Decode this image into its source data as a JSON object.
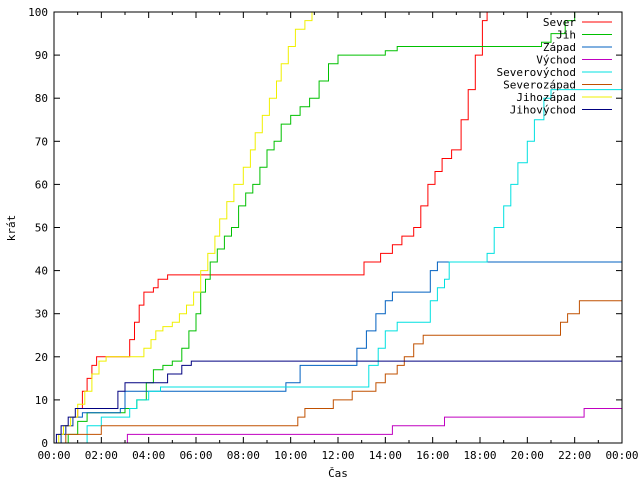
{
  "chart_data": {
    "type": "line",
    "xlabel": "Čas",
    "ylabel": "krát",
    "xlim": [
      0,
      24
    ],
    "ylim": [
      0,
      100
    ],
    "x_tick_labels": [
      "00:00",
      "02:00",
      "04:00",
      "06:00",
      "08:00",
      "10:00",
      "12:00",
      "14:00",
      "16:00",
      "18:00",
      "20:00",
      "22:00",
      "00:00"
    ],
    "y_ticks": [
      0,
      10,
      20,
      30,
      40,
      50,
      60,
      70,
      80,
      90,
      100
    ],
    "grid": false,
    "legend_position": "top-right",
    "series": [
      {
        "name": "Sever",
        "color": "#ff0000",
        "points": [
          [
            0,
            0
          ],
          [
            0.3,
            2
          ],
          [
            0.5,
            4
          ],
          [
            0.8,
            6
          ],
          [
            1.0,
            8
          ],
          [
            1.2,
            12
          ],
          [
            1.4,
            15
          ],
          [
            1.6,
            18
          ],
          [
            1.8,
            20
          ],
          [
            3.0,
            20
          ],
          [
            3.2,
            24
          ],
          [
            3.4,
            28
          ],
          [
            3.6,
            32
          ],
          [
            3.8,
            35
          ],
          [
            4.2,
            36
          ],
          [
            4.4,
            38
          ],
          [
            4.8,
            39
          ],
          [
            13.0,
            39
          ],
          [
            13.1,
            42
          ],
          [
            13.6,
            42
          ],
          [
            13.8,
            44
          ],
          [
            14.3,
            46
          ],
          [
            14.7,
            48
          ],
          [
            15.2,
            50
          ],
          [
            15.5,
            55
          ],
          [
            15.8,
            60
          ],
          [
            16.1,
            63
          ],
          [
            16.4,
            66
          ],
          [
            16.8,
            68
          ],
          [
            17.2,
            75
          ],
          [
            17.5,
            82
          ],
          [
            17.8,
            90
          ],
          [
            18.1,
            98
          ],
          [
            18.3,
            100
          ]
        ]
      },
      {
        "name": "Jih",
        "color": "#00c000",
        "points": [
          [
            0,
            0
          ],
          [
            0.6,
            2
          ],
          [
            1.0,
            5
          ],
          [
            1.4,
            7
          ],
          [
            2.0,
            7
          ],
          [
            3.0,
            8
          ],
          [
            3.5,
            10
          ],
          [
            3.9,
            14
          ],
          [
            4.2,
            17
          ],
          [
            4.6,
            18
          ],
          [
            5.0,
            19
          ],
          [
            5.4,
            22
          ],
          [
            5.7,
            26
          ],
          [
            6.0,
            30
          ],
          [
            6.2,
            35
          ],
          [
            6.4,
            38
          ],
          [
            6.6,
            42
          ],
          [
            6.9,
            45
          ],
          [
            7.2,
            48
          ],
          [
            7.5,
            50
          ],
          [
            7.8,
            55
          ],
          [
            8.1,
            58
          ],
          [
            8.4,
            60
          ],
          [
            8.7,
            64
          ],
          [
            9.0,
            68
          ],
          [
            9.3,
            70
          ],
          [
            9.6,
            74
          ],
          [
            10.0,
            76
          ],
          [
            10.4,
            78
          ],
          [
            10.8,
            80
          ],
          [
            11.2,
            84
          ],
          [
            11.6,
            88
          ],
          [
            12.0,
            90
          ],
          [
            13.5,
            90
          ],
          [
            14.0,
            91
          ],
          [
            14.5,
            92
          ],
          [
            20.0,
            92
          ],
          [
            20.6,
            93
          ],
          [
            21.0,
            95
          ],
          [
            21.6,
            98
          ],
          [
            22.0,
            100
          ]
        ]
      },
      {
        "name": "Západ",
        "color": "#0060c0",
        "points": [
          [
            0,
            0
          ],
          [
            0.3,
            2
          ],
          [
            0.5,
            4
          ],
          [
            0.8,
            6
          ],
          [
            1.2,
            7
          ],
          [
            2.0,
            7
          ],
          [
            2.8,
            8
          ],
          [
            3.0,
            12
          ],
          [
            9.6,
            12
          ],
          [
            9.8,
            14
          ],
          [
            10.4,
            18
          ],
          [
            12.6,
            18
          ],
          [
            12.8,
            22
          ],
          [
            13.2,
            26
          ],
          [
            13.6,
            30
          ],
          [
            14.0,
            33
          ],
          [
            14.3,
            35
          ],
          [
            15.7,
            35
          ],
          [
            15.9,
            40
          ],
          [
            16.2,
            42
          ],
          [
            24.0,
            42
          ]
        ]
      },
      {
        "name": "Východ",
        "color": "#c000c0",
        "points": [
          [
            0,
            0
          ],
          [
            3.0,
            0
          ],
          [
            3.1,
            2
          ],
          [
            14.0,
            2
          ],
          [
            14.3,
            4
          ],
          [
            16.0,
            4
          ],
          [
            16.5,
            6
          ],
          [
            22.0,
            6
          ],
          [
            22.4,
            8
          ],
          [
            24.0,
            8
          ]
        ]
      },
      {
        "name": "Severovýchod",
        "color": "#00e0e0",
        "points": [
          [
            0,
            0
          ],
          [
            1.2,
            0
          ],
          [
            1.4,
            4
          ],
          [
            2.0,
            6
          ],
          [
            3.0,
            6
          ],
          [
            3.2,
            8
          ],
          [
            3.5,
            10
          ],
          [
            4.0,
            12
          ],
          [
            4.5,
            13
          ],
          [
            13.0,
            13
          ],
          [
            13.3,
            18
          ],
          [
            13.7,
            22
          ],
          [
            14.0,
            26
          ],
          [
            14.5,
            28
          ],
          [
            15.7,
            28
          ],
          [
            15.9,
            33
          ],
          [
            16.2,
            36
          ],
          [
            16.5,
            38
          ],
          [
            16.7,
            42
          ],
          [
            18.0,
            42
          ],
          [
            18.3,
            44
          ],
          [
            18.6,
            50
          ],
          [
            19.0,
            55
          ],
          [
            19.3,
            60
          ],
          [
            19.6,
            65
          ],
          [
            20.0,
            70
          ],
          [
            20.3,
            75
          ],
          [
            20.7,
            80
          ],
          [
            21.0,
            82
          ],
          [
            24.0,
            82
          ]
        ]
      },
      {
        "name": "Severozápad",
        "color": "#c05000",
        "points": [
          [
            0,
            0
          ],
          [
            0.5,
            2
          ],
          [
            1.0,
            2
          ],
          [
            2.0,
            4
          ],
          [
            10.0,
            4
          ],
          [
            10.3,
            6
          ],
          [
            10.6,
            8
          ],
          [
            11.6,
            8
          ],
          [
            11.8,
            10
          ],
          [
            12.6,
            12
          ],
          [
            13.6,
            14
          ],
          [
            14.0,
            16
          ],
          [
            14.5,
            18
          ],
          [
            14.8,
            20
          ],
          [
            15.2,
            23
          ],
          [
            15.6,
            25
          ],
          [
            21.2,
            25
          ],
          [
            21.4,
            28
          ],
          [
            21.7,
            30
          ],
          [
            22.2,
            33
          ],
          [
            24.0,
            33
          ]
        ]
      },
      {
        "name": "Jihozápad",
        "color": "#f0f000",
        "points": [
          [
            0,
            0
          ],
          [
            0.2,
            2
          ],
          [
            0.4,
            4
          ],
          [
            0.7,
            6
          ],
          [
            1.0,
            9
          ],
          [
            1.3,
            12
          ],
          [
            1.6,
            16
          ],
          [
            1.9,
            19
          ],
          [
            2.2,
            20
          ],
          [
            3.6,
            20
          ],
          [
            3.8,
            22
          ],
          [
            4.1,
            24
          ],
          [
            4.3,
            26
          ],
          [
            4.6,
            27
          ],
          [
            5.0,
            28
          ],
          [
            5.3,
            30
          ],
          [
            5.6,
            32
          ],
          [
            5.9,
            35
          ],
          [
            6.2,
            40
          ],
          [
            6.5,
            44
          ],
          [
            6.8,
            48
          ],
          [
            7.0,
            52
          ],
          [
            7.3,
            56
          ],
          [
            7.6,
            60
          ],
          [
            8.0,
            64
          ],
          [
            8.3,
            68
          ],
          [
            8.5,
            72
          ],
          [
            8.8,
            76
          ],
          [
            9.1,
            80
          ],
          [
            9.4,
            84
          ],
          [
            9.6,
            88
          ],
          [
            9.9,
            92
          ],
          [
            10.2,
            96
          ],
          [
            10.6,
            98
          ],
          [
            10.9,
            100
          ]
        ]
      },
      {
        "name": "Jihovýchod",
        "color": "#000080",
        "points": [
          [
            0,
            0
          ],
          [
            0.1,
            2
          ],
          [
            0.3,
            4
          ],
          [
            0.6,
            6
          ],
          [
            0.9,
            8
          ],
          [
            2.5,
            8
          ],
          [
            2.7,
            12
          ],
          [
            3.0,
            14
          ],
          [
            4.6,
            14
          ],
          [
            4.8,
            16
          ],
          [
            5.4,
            18
          ],
          [
            5.8,
            19
          ],
          [
            24.0,
            19
          ]
        ]
      }
    ]
  }
}
